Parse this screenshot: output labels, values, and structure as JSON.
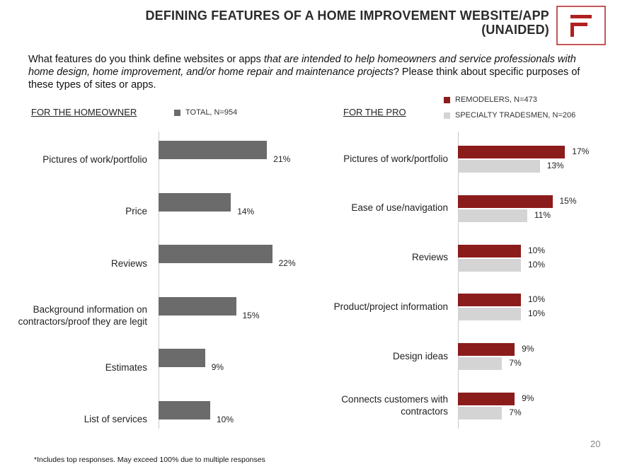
{
  "title_line1": "DEFINING FEATURES OF A HOME IMPROVEMENT WEBSITE/APP",
  "title_line2": "(UNAIDED)",
  "question": {
    "part1": "What features do you think define websites or apps ",
    "italic": "that are intended to help homeowners and service professionals with home design, home improvement, and/or home repair and maintenance projects",
    "part2": "?  Please think about specific purposes of these types of sites or apps."
  },
  "footnote": "*Includes top responses. May exceed 100% due to multiple responses",
  "page_number": "20",
  "colors": {
    "homeowner_bar": "#6b6b6b",
    "remodelers": "#8b1c1c",
    "tradesmen": "#d4d4d4",
    "logo_red": "#b02020"
  },
  "chart_data": [
    {
      "type": "bar",
      "orientation": "horizontal",
      "section_title": "FOR THE HOMEOWNER",
      "categories": [
        [
          "Pictures of work/portfolio"
        ],
        [
          "Price"
        ],
        [
          "Reviews"
        ],
        [
          "Background information on",
          "contractors/proof they are legit"
        ],
        [
          "Estimates"
        ],
        [
          "List of services"
        ]
      ],
      "series": [
        {
          "name": "TOTAL, N=954",
          "values": [
            21,
            14,
            22,
            15,
            9,
            10
          ],
          "labels": [
            "21%",
            "14%",
            "22%",
            "15%",
            "9%",
            "10%"
          ]
        }
      ],
      "legend_position": "top"
    },
    {
      "type": "bar",
      "orientation": "horizontal",
      "section_title": "FOR THE PRO",
      "categories": [
        [
          "Pictures of work/portfolio"
        ],
        [
          "Ease of use/navigation"
        ],
        [
          "Reviews"
        ],
        [
          "Product/project information"
        ],
        [
          "Design ideas"
        ],
        [
          "Connects customers with",
          "contractors"
        ]
      ],
      "series": [
        {
          "name": "REMODELERS, N=473",
          "values": [
            17,
            15,
            10,
            10,
            9,
            9
          ],
          "labels": [
            "17%",
            "15%",
            "10%",
            "10%",
            "9%",
            "9%"
          ]
        },
        {
          "name": "SPECIALTY TRADESMEN, N=206",
          "values": [
            13,
            11,
            10,
            10,
            7,
            7
          ],
          "labels": [
            "13%",
            "11%",
            "10%",
            "10%",
            "7%",
            "7%"
          ]
        }
      ],
      "legend_position": "top-right"
    }
  ]
}
